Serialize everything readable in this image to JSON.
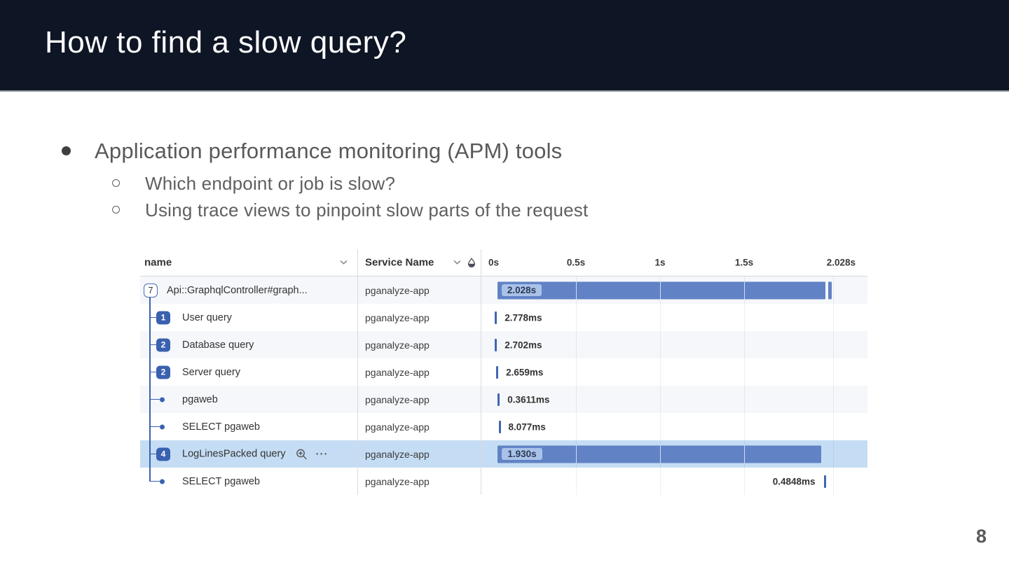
{
  "theme": {
    "header_bg": "#0e1524",
    "accent_blue": "#3a61af",
    "bar_blue": "#6182c5",
    "chip_bg": "#a9c2e9",
    "highlight_row": "#c5ddf4",
    "shade_row": "#f5f7fa",
    "tick_blue": "#4066b2"
  },
  "slide": {
    "title": "How to find a slow query?",
    "page_number": "8"
  },
  "bullets": {
    "level1": "Application performance monitoring (APM) tools",
    "level2": [
      "Which endpoint or job is slow?",
      "Using trace views to pinpoint slow parts of the request"
    ]
  },
  "trace_table": {
    "columns": {
      "name_label": "name",
      "service_label": "Service Name"
    },
    "timeline_ticks": [
      {
        "label": "0s",
        "pos_s": 0
      },
      {
        "label": "0.5s",
        "pos_s": 0.5
      },
      {
        "label": "1s",
        "pos_s": 1
      },
      {
        "label": "1.5s",
        "pos_s": 1.5
      },
      {
        "label": "2.028s",
        "pos_s": 2.028
      }
    ],
    "axis": {
      "origin_s": 0,
      "end_s": 2.028
    },
    "rows": [
      {
        "badge": "7",
        "badge_style": "outline",
        "tree": "root",
        "name": "Api::GraphqlController#graph...",
        "service": "pganalyze-app",
        "duration": "2.028s",
        "label_mode": "chip",
        "spans": [
          {
            "start_s": 0.033,
            "end_s": 1.985
          },
          {
            "start_s": 1.998,
            "end_s": 2.02
          }
        ],
        "bg": "shade",
        "icons": []
      },
      {
        "badge": "1",
        "badge_style": "solid",
        "tree": "child",
        "name": "User query",
        "service": "pganalyze-app",
        "duration": "2.778ms",
        "label_mode": "right",
        "spans": [
          {
            "start_s": 0.018,
            "end_s": 0.03
          }
        ],
        "bg": "white",
        "icons": []
      },
      {
        "badge": "2",
        "badge_style": "solid",
        "tree": "child",
        "name": "Database query",
        "service": "pganalyze-app",
        "duration": "2.702ms",
        "label_mode": "right",
        "spans": [
          {
            "start_s": 0.018,
            "end_s": 0.03
          }
        ],
        "bg": "shade",
        "icons": []
      },
      {
        "badge": "2",
        "badge_style": "solid",
        "tree": "child",
        "name": "Server query",
        "service": "pganalyze-app",
        "duration": "2.659ms",
        "label_mode": "right",
        "spans": [
          {
            "start_s": 0.026,
            "end_s": 0.038
          }
        ],
        "bg": "white",
        "icons": []
      },
      {
        "badge": "",
        "badge_style": "dot",
        "tree": "child",
        "name": "pgaweb",
        "service": "pganalyze-app",
        "duration": "0.3611ms",
        "label_mode": "right",
        "spans": [
          {
            "start_s": 0.035,
            "end_s": 0.047
          }
        ],
        "bg": "shade",
        "icons": []
      },
      {
        "badge": "",
        "badge_style": "dot",
        "tree": "child",
        "name": "SELECT pgaweb",
        "service": "pganalyze-app",
        "duration": "8.077ms",
        "label_mode": "right",
        "spans": [
          {
            "start_s": 0.04,
            "end_s": 0.052
          }
        ],
        "bg": "white",
        "icons": []
      },
      {
        "badge": "4",
        "badge_style": "solid",
        "tree": "child",
        "name": "LogLinesPacked query",
        "service": "pganalyze-app",
        "duration": "1.930s",
        "label_mode": "chip",
        "spans": [
          {
            "start_s": 0.035,
            "end_s": 1.958
          }
        ],
        "bg": "highlight",
        "icons": [
          "zoom-in-icon",
          "ellipsis-icon"
        ]
      },
      {
        "badge": "",
        "badge_style": "dot",
        "tree": "last-child",
        "name": "SELECT pgaweb",
        "service": "pganalyze-app",
        "duration": "0.4848ms",
        "label_mode": "left",
        "spans": [
          {
            "start_s": 1.973,
            "end_s": 1.985
          }
        ],
        "bg": "white",
        "icons": []
      }
    ]
  }
}
